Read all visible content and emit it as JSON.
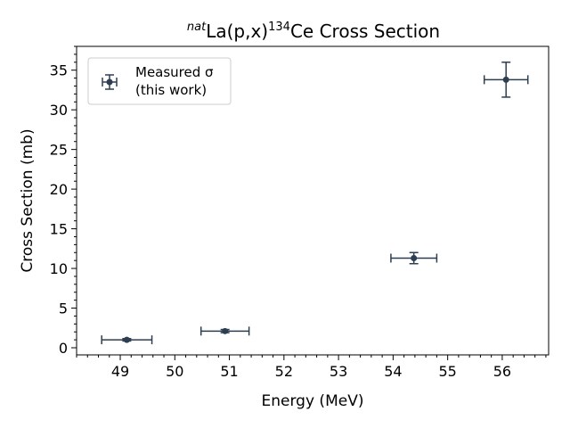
{
  "chart_data": {
    "type": "scatter",
    "title_prefix": "nat",
    "title_main": "La(p,x)",
    "title_mass": "134",
    "title_suffix": "Ce Cross Section",
    "xlabel": "Energy (MeV)",
    "ylabel": "Cross Section (mb)",
    "xlim": [
      48.2,
      56.85
    ],
    "ylim": [
      -0.9,
      38.0
    ],
    "xticks": [
      49,
      50,
      51,
      52,
      53,
      54,
      55,
      56
    ],
    "yticks": [
      0,
      5,
      10,
      15,
      20,
      25,
      30,
      35
    ],
    "grid": false,
    "legend_position": "upper-left",
    "series": [
      {
        "name_line1": "Measured σ",
        "name_line2": "(this work)",
        "color": "#2c3e50",
        "points": [
          {
            "x": 49.12,
            "y": 1.0,
            "xerr": 0.46,
            "yerr": 0.15
          },
          {
            "x": 50.92,
            "y": 2.1,
            "xerr": 0.44,
            "yerr": 0.2
          },
          {
            "x": 54.38,
            "y": 11.3,
            "xerr": 0.42,
            "yerr": 0.7
          },
          {
            "x": 56.07,
            "y": 33.8,
            "xerr": 0.4,
            "yerr": 2.2
          }
        ]
      }
    ]
  }
}
